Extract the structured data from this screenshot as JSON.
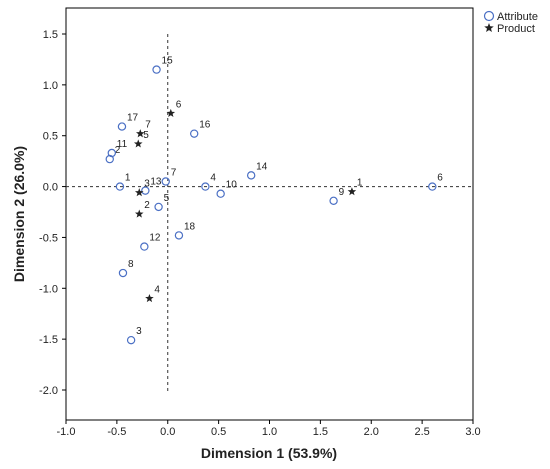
{
  "chart_data": {
    "type": "scatter",
    "xlabel": "Dimension 1 (53.9%)",
    "ylabel": "Dimension 2 (26.0%)",
    "xlim": [
      -1.0,
      3.0
    ],
    "ylim": [
      -2.0,
      1.5
    ],
    "xticks": [
      "-1.0",
      "-0.5",
      "0.0",
      "0.5",
      "1.0",
      "1.5",
      "2.0",
      "2.5",
      "3.0"
    ],
    "yticks": [
      "1.5",
      "1.0",
      "0.5",
      "0.0",
      "-0.5",
      "-1.0",
      "-1.5",
      "-2.0"
    ],
    "grid": false,
    "reference_lines": {
      "x": 0,
      "y": 0
    },
    "legend_position": "top-right",
    "series": [
      {
        "name": "Attribute",
        "marker": "circle",
        "color": "#4a6fc4",
        "points": [
          {
            "label": "1",
            "x": -0.47,
            "y": 0.0
          },
          {
            "label": "2",
            "x": -0.57,
            "y": 0.27
          },
          {
            "label": "3",
            "x": -0.36,
            "y": -1.51
          },
          {
            "label": "4",
            "x": 0.37,
            "y": 0.0
          },
          {
            "label": "5",
            "x": -0.09,
            "y": -0.2
          },
          {
            "label": "6",
            "x": 2.6,
            "y": 0.0
          },
          {
            "label": "7",
            "x": -0.02,
            "y": 0.05
          },
          {
            "label": "8",
            "x": -0.44,
            "y": -0.85
          },
          {
            "label": "9",
            "x": 1.63,
            "y": -0.14
          },
          {
            "label": "10",
            "x": 0.52,
            "y": -0.07
          },
          {
            "label": "11",
            "x": -0.55,
            "y": 0.33
          },
          {
            "label": "12",
            "x": -0.23,
            "y": -0.59
          },
          {
            "label": "13",
            "x": -0.22,
            "y": -0.04
          },
          {
            "label": "14",
            "x": 0.82,
            "y": 0.11
          },
          {
            "label": "15",
            "x": -0.11,
            "y": 1.15
          },
          {
            "label": "16",
            "x": 0.26,
            "y": 0.52
          },
          {
            "label": "17",
            "x": -0.45,
            "y": 0.59
          },
          {
            "label": "18",
            "x": 0.11,
            "y": -0.48
          }
        ]
      },
      {
        "name": "Product",
        "marker": "star",
        "color": "#222222",
        "points": [
          {
            "label": "1",
            "x": 1.81,
            "y": -0.05
          },
          {
            "label": "2",
            "x": -0.28,
            "y": -0.27
          },
          {
            "label": "3",
            "x": -0.28,
            "y": -0.06
          },
          {
            "label": "4",
            "x": -0.18,
            "y": -1.1
          },
          {
            "label": "5",
            "x": -0.29,
            "y": 0.42
          },
          {
            "label": "6",
            "x": 0.03,
            "y": 0.72
          },
          {
            "label": "7",
            "x": -0.27,
            "y": 0.52
          }
        ]
      }
    ]
  }
}
